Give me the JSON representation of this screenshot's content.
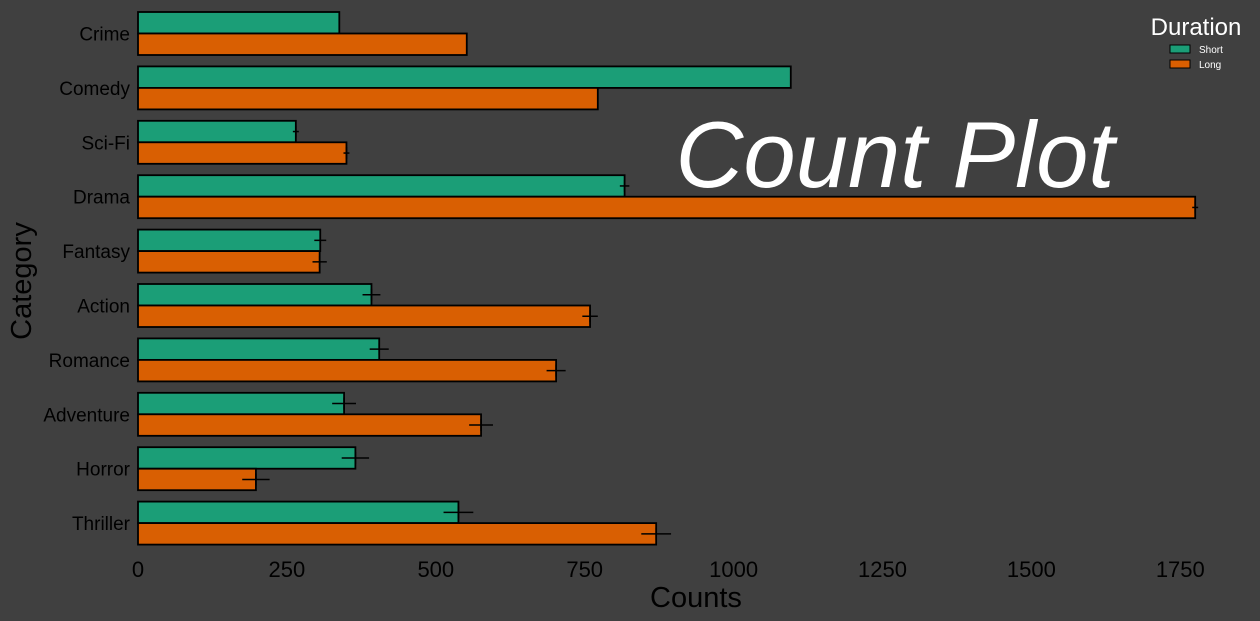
{
  "chart_data": {
    "type": "bar",
    "orientation": "horizontal",
    "title": "Count Plot",
    "xlabel": "Counts",
    "ylabel": "Category",
    "xlim": [
      0,
      1800
    ],
    "xticks": [
      0,
      250,
      500,
      750,
      1000,
      1250,
      1500,
      1750
    ],
    "grid": false,
    "legend": {
      "title": "Duration",
      "position": "top-right"
    },
    "categories": [
      "Crime",
      "Comedy",
      "Sci-Fi",
      "Drama",
      "Fantasy",
      "Action",
      "Romance",
      "Adventure",
      "Horror",
      "Thriller"
    ],
    "series": [
      {
        "name": "Short",
        "color": "#1b9e77",
        "values": [
          338,
          1096,
          265,
          817,
          306,
          392,
          405,
          346,
          365,
          538
        ],
        "error": [
          0,
          0,
          5,
          8,
          10,
          15,
          16,
          20,
          23,
          25
        ]
      },
      {
        "name": "Long",
        "color": "#d95f02",
        "values": [
          552,
          772,
          350,
          1775,
          305,
          759,
          702,
          576,
          198,
          870
        ],
        "error": [
          0,
          0,
          5,
          5,
          12,
          13,
          16,
          20,
          23,
          25
        ]
      }
    ]
  }
}
